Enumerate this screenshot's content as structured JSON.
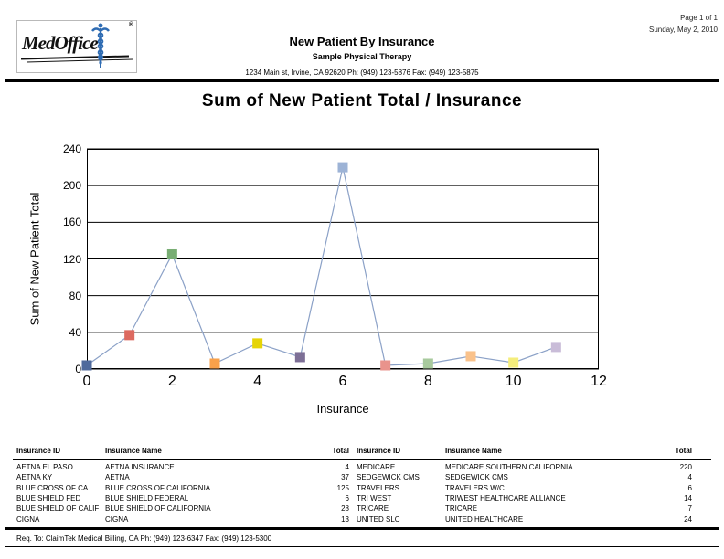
{
  "header": {
    "logo": {
      "text": "MedOffice",
      "registered": "®",
      "caduceus_color": "#2f6cb3"
    },
    "page_info": "Page 1 of 1",
    "date": "Sunday, May 2, 2010",
    "report_title": "New Patient By Insurance",
    "practice_name": "Sample Physical Therapy",
    "practice_address": "1234 Main st, Irvine, CA 92620 Ph: (949) 123-5876 Fax: (949) 123-5875"
  },
  "chart_data": {
    "type": "line",
    "title": "Sum of New Patient Total / Insurance",
    "xlabel": "Insurance",
    "ylabel": "Sum of New Patient Total",
    "x": [
      0,
      1,
      2,
      3,
      4,
      5,
      6,
      7,
      8,
      9,
      10,
      11
    ],
    "values": [
      4,
      37,
      125,
      6,
      28,
      13,
      220,
      4,
      6,
      14,
      7,
      24
    ],
    "point_labels": [
      "AETNA EL PASO",
      "AETNA KY",
      "BLUE CROSS OF CA",
      "BLUE SHIELD FED",
      "BLUE SHIELD OF CALIF",
      "CIGNA",
      "MEDICARE",
      "SEDGEWICK CMS",
      "TRAVELERS",
      "TRI WEST",
      "TRICARE",
      "UNITED SLC"
    ],
    "xlim": [
      0,
      12
    ],
    "ylim": [
      0,
      240
    ],
    "x_ticks": [
      0,
      2,
      4,
      6,
      8,
      10,
      12
    ],
    "y_ticks": [
      0,
      40,
      80,
      120,
      160,
      200,
      240
    ],
    "grid": "horizontal",
    "legend": "none",
    "line_color": "#8ba1c7",
    "marker_colors": [
      "#4f6a9c",
      "#dd6a60",
      "#79ae74",
      "#f9a14a",
      "#e6d405",
      "#7d6f96",
      "#9db3d6",
      "#e9938c",
      "#a8ca9e",
      "#fac28b",
      "#f4ed7c",
      "#c9bcd8"
    ]
  },
  "table": {
    "headers": [
      "Insurance ID",
      "Insurance Name",
      "Total"
    ],
    "left_rows": [
      [
        "AETNA EL PASO",
        "AETNA INSURANCE",
        "4"
      ],
      [
        "AETNA KY",
        "AETNA",
        "37"
      ],
      [
        "BLUE CROSS OF CA",
        "BLUE CROSS OF CALIFORNIA",
        "125"
      ],
      [
        "BLUE SHIELD FED",
        "BLUE SHIELD FEDERAL",
        "6"
      ],
      [
        "BLUE SHIELD OF CALIF",
        "BLUE SHIELD OF CALIFORNIA",
        "28"
      ],
      [
        "CIGNA",
        "CIGNA",
        "13"
      ]
    ],
    "right_rows": [
      [
        "MEDICARE",
        "MEDICARE SOUTHERN CALIFORNIA",
        "220"
      ],
      [
        "SEDGEWICK CMS",
        "SEDGEWICK CMS",
        "4"
      ],
      [
        "TRAVELERS",
        "TRAVELERS W/C",
        "6"
      ],
      [
        "TRI WEST",
        "TRIWEST HEALTHCARE ALLIANCE",
        "14"
      ],
      [
        "TRICARE",
        "TRICARE",
        "7"
      ],
      [
        "UNITED SLC",
        "UNITED HEALTHCARE",
        "24"
      ]
    ]
  },
  "footer": {
    "text": "Req. To: ClaimTek Medical Billing, CA Ph: (949) 123-6347 Fax: (949) 123-5300"
  }
}
